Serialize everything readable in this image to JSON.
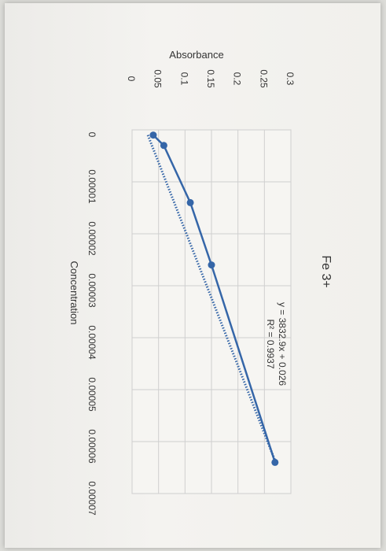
{
  "chart_data": {
    "type": "scatter",
    "title": "Fe 3+",
    "xlabel": "Concentration",
    "ylabel": "Absorbance",
    "xlim": [
      0,
      7e-05
    ],
    "ylim": [
      0,
      0.3
    ],
    "x_ticks": [
      "0",
      "0.00001",
      "0.00002",
      "0.00003",
      "0.00004",
      "0.00005",
      "0.00006",
      "0.00007"
    ],
    "y_ticks": [
      "0",
      "0.05",
      "0.1",
      "0.15",
      "0.2",
      "0.25",
      "0.3"
    ],
    "grid": true,
    "series": [
      {
        "x": [
          1e-06,
          3e-06,
          1.4e-05,
          2.6e-05,
          6.4e-05
        ],
        "y": [
          0.04,
          0.06,
          0.11,
          0.15,
          0.27
        ],
        "color": "#3566a8"
      }
    ],
    "trendline": {
      "type": "linear",
      "equation": "y = 3832.9x + 0.026",
      "r_squared": "R² = 0.9937",
      "slope": 3832.9,
      "intercept": 0.026,
      "style": "dotted",
      "color": "#3566a8"
    },
    "orientation": "rotated-90-clockwise"
  }
}
